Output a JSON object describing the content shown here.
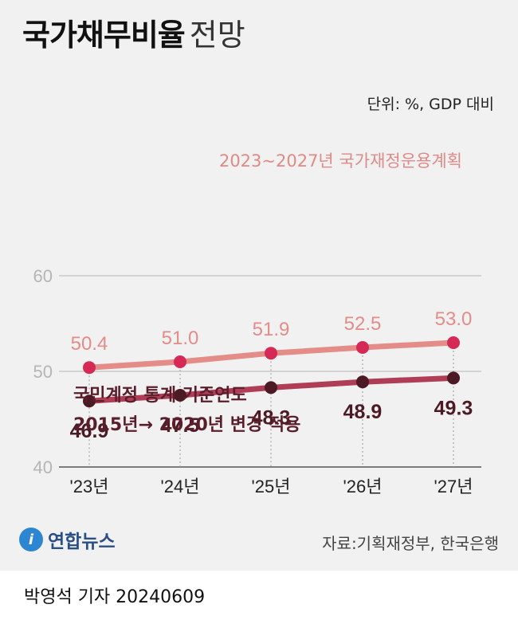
{
  "title_bold": "국가채무비율",
  "title_light": "전망",
  "unit": "단위: %, GDP 대비",
  "note": [
    "국민계정 통계 기준연도",
    "2015년→ 2020년 변경 적용"
  ],
  "logo": {
    "mark": "i",
    "text": "연합뉴스",
    "icon": "yonhap-logo-icon"
  },
  "source": "자료:기획재정부, 한국은행",
  "credit": "박영석 기자  20240609",
  "colors": {
    "plan": "#e48c88",
    "plan_dot": "#d42a55",
    "revised": "#b03d56",
    "revised_dot": "#4b1a24",
    "grid": "#c9c9c9"
  },
  "chart_data": {
    "type": "line",
    "title": "국가채무비율 전망",
    "xlabel": "",
    "ylabel": "단위: %, GDP 대비",
    "categories": [
      "'23년",
      "'24년",
      "'25년",
      "'26년",
      "'27년"
    ],
    "ylim": [
      40,
      60
    ],
    "yticks": [
      40,
      50,
      60
    ],
    "series": [
      {
        "name": "2023~2027년 국가재정운용계획",
        "values": [
          50.4,
          51.0,
          51.9,
          52.5,
          53.0
        ]
      },
      {
        "name": "국민계정 통계 기준연도 2015년→ 2020년 변경 적용",
        "values": [
          46.9,
          47.5,
          48.3,
          48.9,
          49.3
        ]
      }
    ]
  }
}
